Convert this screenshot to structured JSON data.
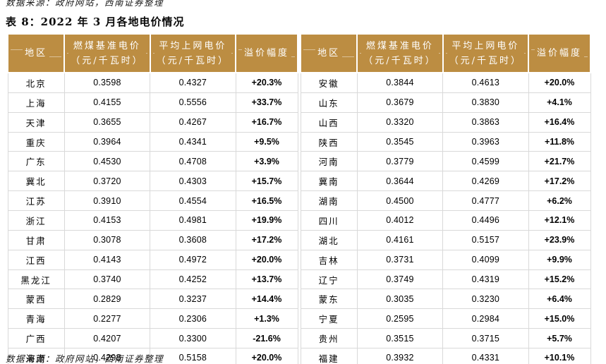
{
  "meta": {
    "top_source_note": "数据来源：政府网站，西南证券整理",
    "title": "表 8：2022 年 3 月各地电价情况",
    "bottom_source_note": "数据来源：政府网站，西南证券整理"
  },
  "colors": {
    "header_gold": "#BC8D42",
    "header_text": "#FFFFFF",
    "cell_border": "#D9D9D9"
  },
  "table": {
    "header": {
      "region": "地区",
      "base_price_line1": "燃煤基准电价",
      "base_price_line2": "（元/千瓦时）",
      "avg_price_line1": "平均上网电价",
      "avg_price_line2": "（元/千瓦时）",
      "premium": "溢价幅度"
    },
    "left_rows": [
      {
        "region": "北京",
        "base": "0.3598",
        "avg": "0.4327",
        "premium": "+20.3%"
      },
      {
        "region": "上海",
        "base": "0.4155",
        "avg": "0.5556",
        "premium": "+33.7%"
      },
      {
        "region": "天津",
        "base": "0.3655",
        "avg": "0.4267",
        "premium": "+16.7%"
      },
      {
        "region": "重庆",
        "base": "0.3964",
        "avg": "0.4341",
        "premium": "+9.5%"
      },
      {
        "region": "广东",
        "base": "0.4530",
        "avg": "0.4708",
        "premium": "+3.9%"
      },
      {
        "region": "冀北",
        "base": "0.3720",
        "avg": "0.4303",
        "premium": "+15.7%"
      },
      {
        "region": "江苏",
        "base": "0.3910",
        "avg": "0.4554",
        "premium": "+16.5%"
      },
      {
        "region": "浙江",
        "base": "0.4153",
        "avg": "0.4981",
        "premium": "+19.9%"
      },
      {
        "region": "甘肃",
        "base": "0.3078",
        "avg": "0.3608",
        "premium": "+17.2%"
      },
      {
        "region": "江西",
        "base": "0.4143",
        "avg": "0.4972",
        "premium": "+20.0%"
      },
      {
        "region": "黑龙江",
        "base": "0.3740",
        "avg": "0.4252",
        "premium": "+13.7%"
      },
      {
        "region": "蒙西",
        "base": "0.2829",
        "avg": "0.3237",
        "premium": "+14.4%"
      },
      {
        "region": "青海",
        "base": "0.2277",
        "avg": "0.2306",
        "premium": "+1.3%"
      },
      {
        "region": "广西",
        "base": "0.4207",
        "avg": "0.3300",
        "premium": "-21.6%"
      },
      {
        "region": "海南",
        "base": "0.4298",
        "avg": "0.5158",
        "premium": "+20.0%"
      }
    ],
    "right_rows": [
      {
        "region": "安徽",
        "base": "0.3844",
        "avg": "0.4613",
        "premium": "+20.0%"
      },
      {
        "region": "山东",
        "base": "0.3679",
        "avg": "0.3830",
        "premium": "+4.1%"
      },
      {
        "region": "山西",
        "base": "0.3320",
        "avg": "0.3863",
        "premium": "+16.4%"
      },
      {
        "region": "陕西",
        "base": "0.3545",
        "avg": "0.3963",
        "premium": "+11.8%"
      },
      {
        "region": "河南",
        "base": "0.3779",
        "avg": "0.4599",
        "premium": "+21.7%"
      },
      {
        "region": "冀南",
        "base": "0.3644",
        "avg": "0.4269",
        "premium": "+17.2%"
      },
      {
        "region": "湖南",
        "base": "0.4500",
        "avg": "0.4777",
        "premium": "+6.2%"
      },
      {
        "region": "四川",
        "base": "0.4012",
        "avg": "0.4496",
        "premium": "+12.1%"
      },
      {
        "region": "湖北",
        "base": "0.4161",
        "avg": "0.5157",
        "premium": "+23.9%"
      },
      {
        "region": "吉林",
        "base": "0.3731",
        "avg": "0.4099",
        "premium": "+9.9%"
      },
      {
        "region": "辽宁",
        "base": "0.3749",
        "avg": "0.4319",
        "premium": "+15.2%"
      },
      {
        "region": "蒙东",
        "base": "0.3035",
        "avg": "0.3230",
        "premium": "+6.4%"
      },
      {
        "region": "宁夏",
        "base": "0.2595",
        "avg": "0.2984",
        "premium": "+15.0%"
      },
      {
        "region": "贵州",
        "base": "0.3515",
        "avg": "0.3715",
        "premium": "+5.7%"
      },
      {
        "region": "福建",
        "base": "0.3932",
        "avg": "0.4331",
        "premium": "+10.1%"
      }
    ]
  }
}
